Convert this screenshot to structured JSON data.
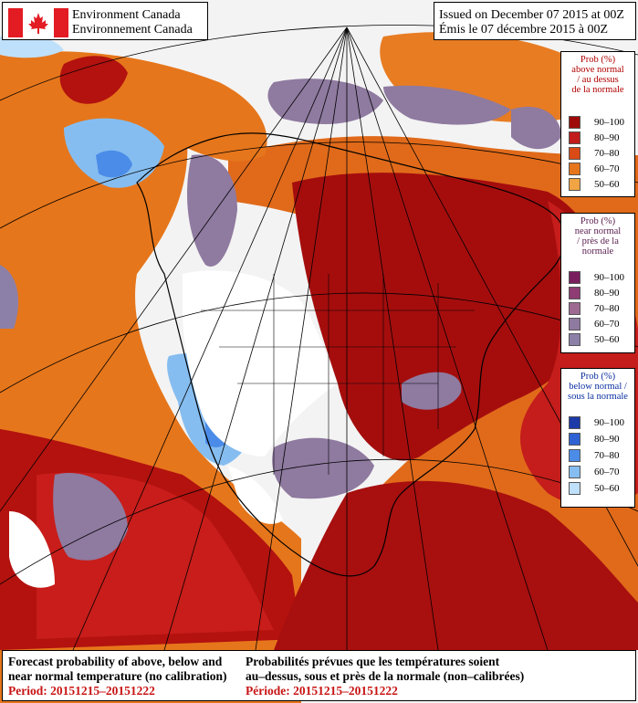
{
  "header": {
    "agency_en": "Environment Canada",
    "agency_fr": "Environnement Canada",
    "issued_en": "Issued on December 07 2015 at 00Z",
    "issued_fr": "Émis le 07 décembre 2015 à 00Z"
  },
  "legends": {
    "above": {
      "title_lines": [
        "Prob (%)",
        "above normal",
        "/ au dessus",
        "de la normale"
      ],
      "items": [
        {
          "label": "90–100",
          "color": "#9e0a0a"
        },
        {
          "label": "80–90",
          "color": "#c21b1b"
        },
        {
          "label": "70–80",
          "color": "#da4a17"
        },
        {
          "label": "60–70",
          "color": "#e6761b"
        },
        {
          "label": "50–60",
          "color": "#f0a444"
        }
      ]
    },
    "near": {
      "title_lines": [
        "Prob (%)",
        "near normal",
        "/ près de la",
        "normale"
      ],
      "items": [
        {
          "label": "90–100",
          "color": "#7a1f5e"
        },
        {
          "label": "80–90",
          "color": "#8e3c73"
        },
        {
          "label": "70–80",
          "color": "#9e6a92"
        },
        {
          "label": "60–70",
          "color": "#8f7aa0"
        },
        {
          "label": "50–60",
          "color": "#8c80a8"
        }
      ]
    },
    "below": {
      "title_lines": [
        "Prob (%)",
        "below normal /",
        "sous la normale"
      ],
      "items": [
        {
          "label": "90–100",
          "color": "#1c3aa8"
        },
        {
          "label": "80–90",
          "color": "#2e62d4"
        },
        {
          "label": "70–80",
          "color": "#4b8ce8"
        },
        {
          "label": "60–70",
          "color": "#86bdf0"
        },
        {
          "label": "50–60",
          "color": "#bfe0fa"
        }
      ]
    }
  },
  "footer": {
    "en_line1": "Forecast probability of above, below and",
    "en_line2": "near normal temperature (no calibration)",
    "en_period": "Period: 20151215–20151222",
    "fr_line1": "Probabilités prévues que les températures soient",
    "fr_line2": "au–dessus, sous et près de la normale (non–calibrées)",
    "fr_period": "Période: 20151215–20151222"
  }
}
